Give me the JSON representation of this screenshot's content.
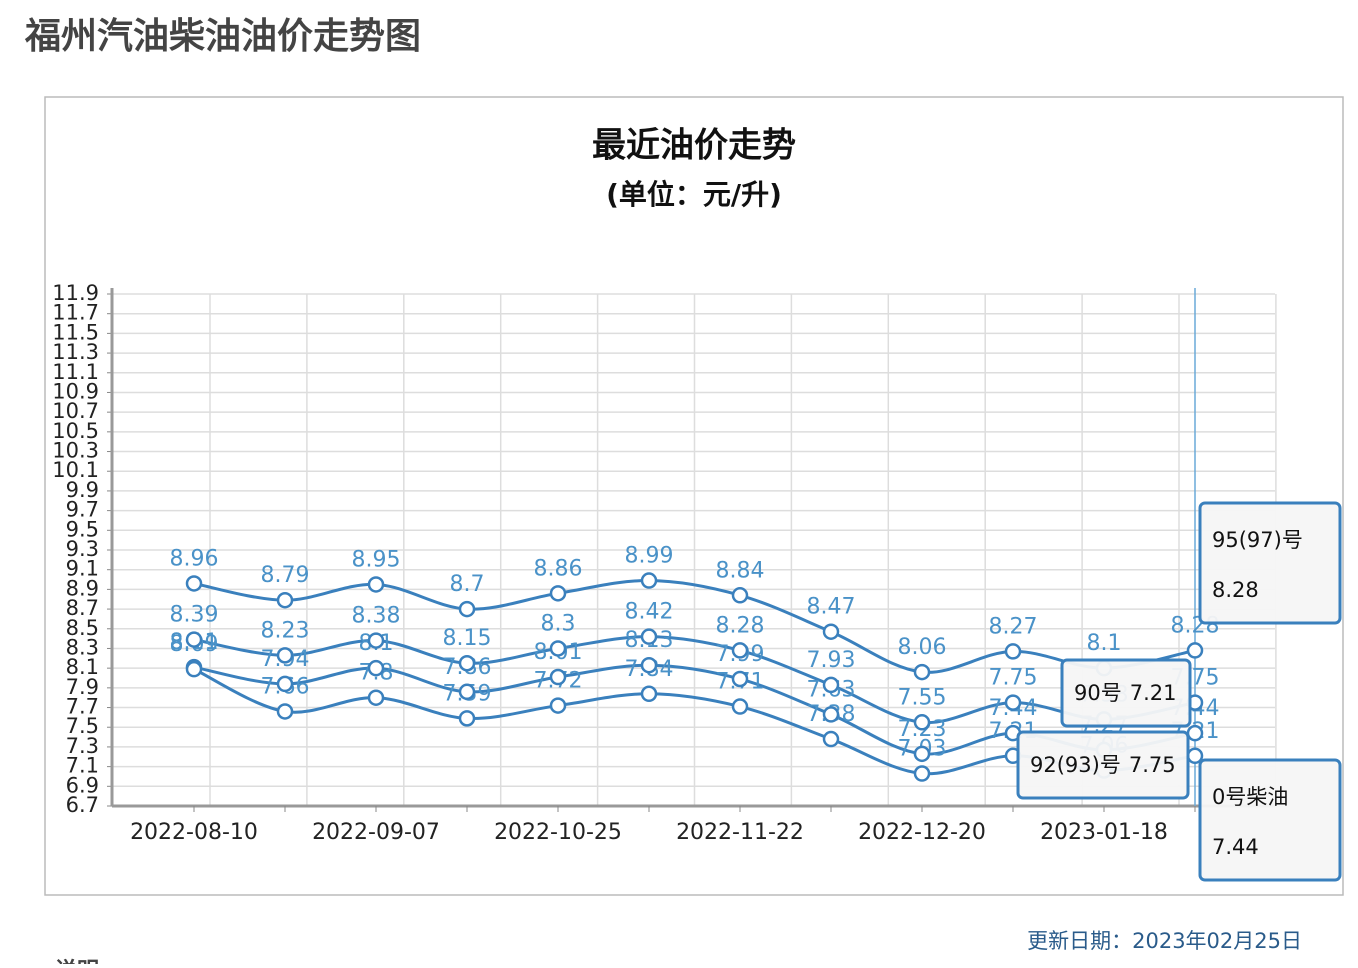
{
  "page_title": "福州汽油柴油油价走势图",
  "update_date": "更新日期：2023年02月25日",
  "note_heading": "说明",
  "chart_data": {
    "type": "line",
    "title": "最近油价走势",
    "subtitle": "(单位：元/升)",
    "categories": [
      "2022-08-10",
      null,
      "2022-09-07",
      null,
      "2022-10-25",
      null,
      "2022-11-22",
      null,
      "2022-12-20",
      null,
      "2023-01-18",
      null
    ],
    "series": [
      {
        "name": "95(97)号",
        "color": "#3a80bd",
        "values": [
          8.96,
          8.79,
          8.95,
          8.7,
          8.86,
          8.99,
          8.84,
          8.47,
          8.06,
          8.27,
          8.1,
          8.28
        ]
      },
      {
        "name": "92(93)号",
        "color": "#3a80bd",
        "values": [
          8.39,
          8.23,
          8.38,
          8.15,
          8.3,
          8.42,
          8.28,
          7.93,
          7.55,
          7.75,
          7.58,
          7.75
        ]
      },
      {
        "name": "0号柴油",
        "color": "#3a80bd",
        "values": [
          8.11,
          7.94,
          8.1,
          7.86,
          8.01,
          8.13,
          7.99,
          7.63,
          7.23,
          7.44,
          7.27,
          7.44
        ]
      },
      {
        "name": "90号",
        "color": "#3a80bd",
        "values": [
          8.09,
          7.66,
          7.8,
          7.59,
          7.72,
          7.84,
          7.71,
          7.38,
          7.03,
          7.21,
          7.06,
          7.21
        ]
      }
    ],
    "ylim": [
      6.7,
      11.9
    ],
    "yticks": [
      6.7,
      6.9,
      7.1,
      7.3,
      7.5,
      7.7,
      7.9,
      8.1,
      8.3,
      8.5,
      8.7,
      8.9,
      9.1,
      9.3,
      9.5,
      9.7,
      9.9,
      10.1,
      10.3,
      10.5,
      10.7,
      10.9,
      11.1,
      11.3,
      11.5,
      11.7,
      11.9
    ],
    "grid": true
  }
}
